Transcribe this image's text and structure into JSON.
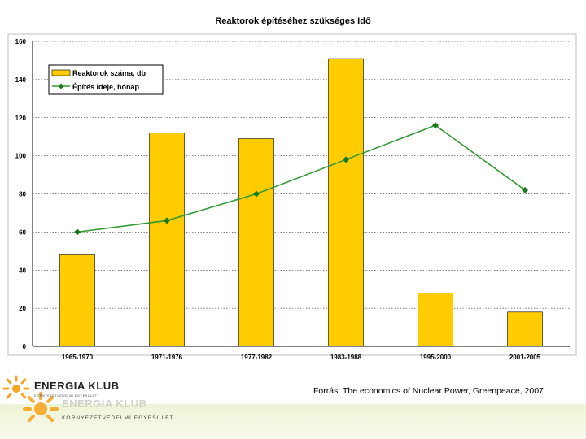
{
  "chart_data": {
    "type": "bar",
    "title": "Reaktorok építéséhez szükséges Idő",
    "categories": [
      "1965-1970",
      "1971-1976",
      "1977-1982",
      "1983-1988",
      "1995-2000",
      "2001-2005"
    ],
    "ylim": [
      0,
      160
    ],
    "yticks": [
      0,
      20,
      40,
      60,
      80,
      100,
      120,
      140,
      160
    ],
    "grid": true,
    "legend_position": "top-left",
    "series": [
      {
        "name": "Reaktorok száma, db",
        "kind": "bar",
        "color": "#FFCC00",
        "values": [
          48,
          112,
          109,
          151,
          28,
          18
        ]
      },
      {
        "name": "Építés ideje, hónap",
        "kind": "line",
        "color": "#339933",
        "values": [
          60,
          66,
          80,
          98,
          116,
          82
        ]
      }
    ]
  },
  "source_note": "Forrás: The economics of Nuclear Power, Greenpeace, 2007",
  "logo": {
    "name": "ENERGIA KLUB",
    "subtitle": "KÖRNYEZETVÉDELMI EGYESÜLET",
    "accent_color": "#F5A623"
  }
}
